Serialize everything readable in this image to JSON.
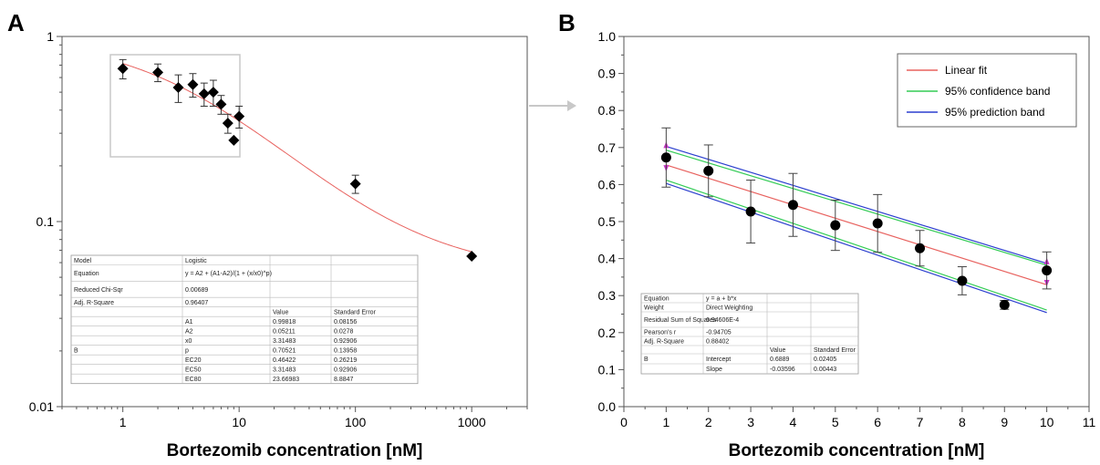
{
  "chart_data": [
    {
      "panel": "A",
      "type": "scatter",
      "xscale": "log",
      "yscale": "log",
      "xlim": [
        0.3,
        3000
      ],
      "ylim": [
        0.01,
        1
      ],
      "xlabel": "Bortezomib concentration [nM]",
      "ylabel": "",
      "grid": false,
      "x_ticks": [
        "1",
        "10",
        "100",
        "1000"
      ],
      "y_ticks": [
        "0.01",
        "0.1",
        "1"
      ],
      "points": [
        {
          "x": 1,
          "y": 0.67,
          "err": 0.08
        },
        {
          "x": 2,
          "y": 0.64,
          "err": 0.07
        },
        {
          "x": 3,
          "y": 0.53,
          "err": 0.09
        },
        {
          "x": 4,
          "y": 0.55,
          "err": 0.08
        },
        {
          "x": 5,
          "y": 0.49,
          "err": 0.07
        },
        {
          "x": 6,
          "y": 0.5,
          "err": 0.08
        },
        {
          "x": 7,
          "y": 0.43,
          "err": 0.05
        },
        {
          "x": 8,
          "y": 0.34,
          "err": 0.04
        },
        {
          "x": 9,
          "y": 0.275,
          "err": 0.0
        },
        {
          "x": 10,
          "y": 0.37,
          "err": 0.05
        },
        {
          "x": 100,
          "y": 0.16,
          "err": 0.018
        },
        {
          "x": 1000,
          "y": 0.065,
          "err": 0.0
        }
      ],
      "fit": {
        "model": "Logistic",
        "A1": 0.99818,
        "A2": 0.05211,
        "x0": 3.31483,
        "p": 0.70521
      },
      "fit_color": "#e8625f",
      "table": {
        "rows": [
          [
            "Model",
            "Logistic",
            "",
            ""
          ],
          [
            "Equation",
            "y = A2 + (A1-A2)/(1 + (x/x0)^p)",
            "",
            ""
          ],
          [
            "Reduced Chi-Sqr",
            "0.00689",
            "",
            ""
          ],
          [
            "Adj. R-Square",
            "0.96407",
            "",
            ""
          ],
          [
            "",
            "",
            "Value",
            "Standard Error"
          ],
          [
            "",
            "A1",
            "0.99818",
            "0.08156"
          ],
          [
            "",
            "A2",
            "0.05211",
            "0.0278"
          ],
          [
            "",
            "x0",
            "3.31483",
            "0.92906"
          ],
          [
            "B",
            "p",
            "0.70521",
            "0.13958"
          ],
          [
            "",
            "EC20",
            "0.46422",
            "0.26219"
          ],
          [
            "",
            "EC50",
            "3.31483",
            "0.92906"
          ],
          [
            "",
            "EC80",
            "23.66983",
            "8.8847"
          ]
        ]
      }
    },
    {
      "panel": "B",
      "type": "scatter",
      "xlim": [
        0,
        11
      ],
      "ylim": [
        0.0,
        1.0
      ],
      "xlabel": "Bortezomib concentration [nM]",
      "ylabel": "",
      "grid": false,
      "x_ticks": [
        "0",
        "1",
        "2",
        "3",
        "4",
        "5",
        "6",
        "7",
        "8",
        "9",
        "10",
        "11"
      ],
      "y_ticks": [
        "0.0",
        "0.1",
        "0.2",
        "0.3",
        "0.4",
        "0.5",
        "0.6",
        "0.7",
        "0.8",
        "0.9",
        "1.0"
      ],
      "points": [
        {
          "x": 1,
          "y": 0.673,
          "err": 0.08
        },
        {
          "x": 2,
          "y": 0.637,
          "err": 0.07
        },
        {
          "x": 3,
          "y": 0.527,
          "err": 0.085
        },
        {
          "x": 4,
          "y": 0.545,
          "err": 0.085
        },
        {
          "x": 5,
          "y": 0.49,
          "err": 0.068
        },
        {
          "x": 6,
          "y": 0.495,
          "err": 0.078
        },
        {
          "x": 7,
          "y": 0.428,
          "err": 0.048
        },
        {
          "x": 8,
          "y": 0.34,
          "err": 0.038
        },
        {
          "x": 9,
          "y": 0.275,
          "err": 0.012
        },
        {
          "x": 10,
          "y": 0.368,
          "err": 0.05
        }
      ],
      "legend": [
        {
          "label": "Linear fit",
          "color": "#e8625f"
        },
        {
          "label": "95% confidence band",
          "color": "#33cc55"
        },
        {
          "label": "95% prediction band",
          "color": "#2c3fcf"
        }
      ],
      "legend_position": "top-right",
      "fit": {
        "intercept": 0.6889,
        "slope": -0.03596
      },
      "bands": {
        "confidence_upper": [
          [
            1,
            0.693
          ],
          [
            10,
            0.382
          ]
        ],
        "confidence_lower": [
          [
            1,
            0.612
          ],
          [
            10,
            0.261
          ]
        ],
        "prediction_upper": [
          [
            1,
            0.703
          ],
          [
            10,
            0.387
          ]
        ],
        "prediction_lower": [
          [
            1,
            0.603
          ],
          [
            10,
            0.254
          ]
        ]
      },
      "marker_color": "#cc33cc",
      "table": {
        "rows": [
          [
            "Equation",
            "y = a + b*x",
            "",
            ""
          ],
          [
            "Weight",
            "Direct Weighting",
            "",
            ""
          ],
          [
            "Residual Sum of Squares",
            "6.94606E-4",
            "",
            ""
          ],
          [
            "Pearson's r",
            "-0.94705",
            "",
            ""
          ],
          [
            "Adj. R-Square",
            "0.88402",
            "",
            ""
          ],
          [
            "",
            "",
            "Value",
            "Standard Error"
          ],
          [
            "B",
            "Intercept",
            "0.6889",
            "0.02405"
          ],
          [
            "",
            "Slope",
            "-0.03596",
            "0.00443"
          ]
        ]
      }
    }
  ],
  "panel_labels": [
    "A",
    "B"
  ]
}
